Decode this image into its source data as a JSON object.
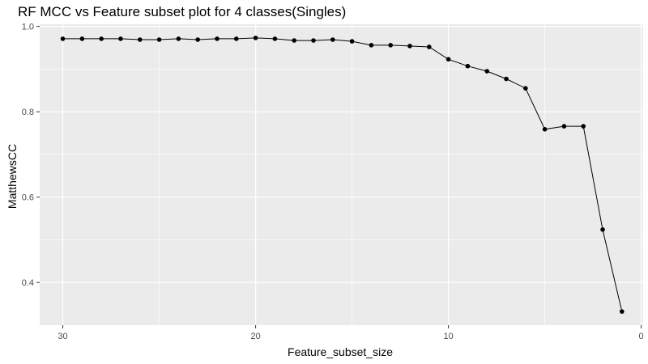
{
  "chart_data": {
    "type": "line",
    "title": "RF MCC vs Feature subset plot for 4 classes(Singles)",
    "xlabel": "Feature_subset_size",
    "ylabel": "MatthewsCC",
    "x_reversed": true,
    "xlim": [
      31.2,
      -0.1
    ],
    "ylim": [
      0.3,
      1.005
    ],
    "x_ticks": [
      30,
      20,
      10,
      0
    ],
    "y_ticks": [
      0.4,
      0.6,
      0.8,
      1.0
    ],
    "y_tick_labels": [
      "0.4",
      "0.6",
      "0.8",
      "1.0"
    ],
    "grid": true,
    "background": "#ebebeb",
    "grid_color": "#ffffff",
    "line_color": "#000000",
    "x": [
      30,
      29,
      28,
      27,
      26,
      25,
      24,
      23,
      22,
      21,
      20,
      19,
      18,
      17,
      16,
      15,
      14,
      13,
      12,
      11,
      10,
      9,
      8,
      7,
      6,
      5,
      4,
      3,
      2,
      1
    ],
    "values": [
      0.971,
      0.971,
      0.971,
      0.971,
      0.969,
      0.969,
      0.971,
      0.969,
      0.971,
      0.971,
      0.973,
      0.971,
      0.967,
      0.967,
      0.969,
      0.965,
      0.956,
      0.956,
      0.954,
      0.952,
      0.923,
      0.907,
      0.895,
      0.877,
      0.855,
      0.759,
      0.766,
      0.766,
      0.524,
      0.332
    ]
  }
}
